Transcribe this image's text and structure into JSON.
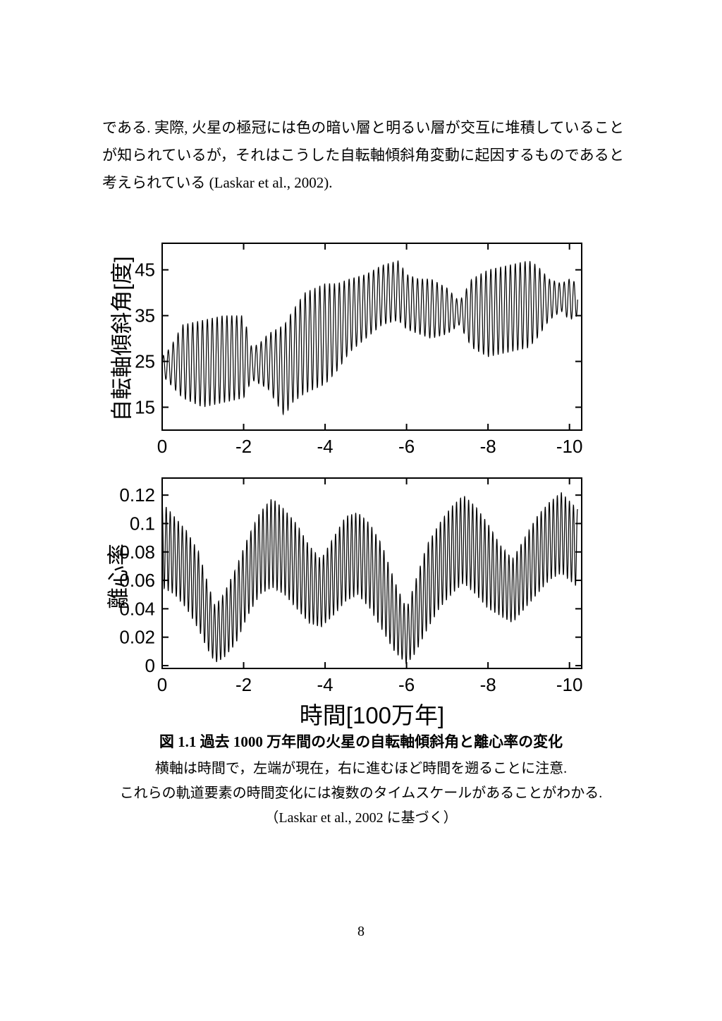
{
  "page": {
    "paragraph_lines": [
      "である. 実際, 火星の極冠には色の暗い層と明るい層が交互に堆積していること",
      "が知られているが，それはこうした自転軸傾斜角変動に起因するものであると",
      "考えられている (Laskar et al., 2002)."
    ],
    "page_number": "8"
  },
  "caption": {
    "title": "図 1.1 過去 1000 万年間の火星の自転軸傾斜角と離心率の変化",
    "note1": "横軸は時間で，左端が現在，右に進むほど時間を遡ることに注意.",
    "note2": "これらの軌道要素の時間変化には複数のタイムスケールがあることがわかる.",
    "source": "（Laskar et al., 2002 に基づく）"
  },
  "chart_data": [
    {
      "type": "line",
      "name": "mars_obliquity_history",
      "title": "",
      "ylabel": "自転軸傾斜角[度]",
      "xlabel": "",
      "xlim": [
        0,
        -10.3
      ],
      "ylim": [
        10,
        50.8
      ],
      "x_axis_meaning": "時間[100万年] (0 = 現在, 右へ進むほど過去)",
      "xtick_positions": [
        0,
        2,
        4,
        6,
        8,
        10
      ],
      "xtick_labels": [
        "0",
        "-2",
        "-4",
        "-6",
        "-8",
        "-10"
      ],
      "ytick_values": [
        15,
        25,
        35,
        45
      ],
      "ytick_labels": [
        "15",
        "25",
        "35",
        "45"
      ],
      "carrier_period_myr": 0.12,
      "carrier_phase": 0,
      "t_end": 10.2,
      "line_color": "#000000",
      "grid": false,
      "envelope": {
        "x": [
          0,
          0.2,
          0.5,
          1.0,
          1.5,
          2.0,
          2.2,
          2.4,
          2.6,
          3.0,
          3.2,
          3.5,
          4.0,
          4.3,
          4.6,
          5.0,
          5.4,
          5.8,
          6.0,
          6.3,
          6.6,
          7.0,
          7.3,
          7.6,
          8.0,
          8.5,
          9.0,
          9.2,
          9.5,
          9.8,
          10.0,
          10.2
        ],
        "lower": [
          22,
          20,
          17,
          15,
          16,
          17,
          21,
          20,
          19,
          13,
          16,
          18,
          20,
          23,
          27,
          30,
          33,
          34,
          32,
          31,
          30,
          31,
          33,
          28,
          26,
          27,
          28,
          30,
          34,
          36,
          34,
          35
        ],
        "upper": [
          26,
          28,
          33,
          34,
          35,
          35,
          28,
          29,
          31,
          33,
          36,
          40,
          42,
          42,
          43,
          44,
          46,
          47,
          44,
          43,
          43,
          41,
          38,
          43,
          45,
          46,
          47,
          46,
          43,
          42,
          43,
          42
        ]
      }
    },
    {
      "type": "line",
      "name": "mars_eccentricity_history",
      "title": "",
      "ylabel": "離心率",
      "xlabel": "時間[100万年]",
      "xlim": [
        0,
        -10.3
      ],
      "ylim": [
        -0.002,
        0.132
      ],
      "x_axis_meaning": "時間[100万年] (0 = 現在, 右へ進むほど過去)",
      "xtick_positions": [
        0,
        2,
        4,
        6,
        8,
        10
      ],
      "xtick_labels": [
        "0",
        "-2",
        "-4",
        "-6",
        "-8",
        "-10"
      ],
      "ytick_values": [
        0,
        0.02,
        0.04,
        0.06,
        0.08,
        0.1,
        0.12
      ],
      "ytick_labels": [
        "0",
        "0.02",
        "0.04",
        "0.06",
        "0.08",
        "0.1",
        "0.12"
      ],
      "carrier_period_myr": 0.099,
      "carrier_phase": 1.5708,
      "t_end": 10.2,
      "line_color": "#000000",
      "grid": false,
      "envelope": {
        "x": [
          0,
          0.3,
          0.6,
          0.9,
          1.1,
          1.3,
          1.5,
          1.8,
          2.1,
          2.4,
          2.7,
          3.0,
          3.3,
          3.6,
          3.9,
          4.2,
          4.5,
          4.8,
          5.1,
          5.4,
          5.7,
          6.0,
          6.2,
          6.5,
          6.8,
          7.1,
          7.4,
          7.7,
          8.0,
          8.3,
          8.6,
          8.9,
          9.2,
          9.5,
          9.8,
          10.2
        ],
        "lower": [
          0.055,
          0.05,
          0.04,
          0.025,
          0.012,
          0.002,
          0.005,
          0.015,
          0.035,
          0.05,
          0.055,
          0.05,
          0.04,
          0.03,
          0.027,
          0.035,
          0.045,
          0.05,
          0.04,
          0.025,
          0.01,
          0.001,
          0.008,
          0.025,
          0.04,
          0.05,
          0.058,
          0.05,
          0.04,
          0.035,
          0.03,
          0.04,
          0.05,
          0.06,
          0.065,
          0.055
        ],
        "upper": [
          0.115,
          0.105,
          0.095,
          0.08,
          0.06,
          0.042,
          0.05,
          0.068,
          0.09,
          0.108,
          0.118,
          0.11,
          0.1,
          0.085,
          0.075,
          0.09,
          0.105,
          0.108,
          0.1,
          0.085,
          0.06,
          0.04,
          0.058,
          0.085,
          0.1,
          0.112,
          0.12,
          0.112,
          0.1,
          0.085,
          0.075,
          0.09,
          0.105,
          0.115,
          0.122,
          0.11
        ]
      }
    }
  ]
}
